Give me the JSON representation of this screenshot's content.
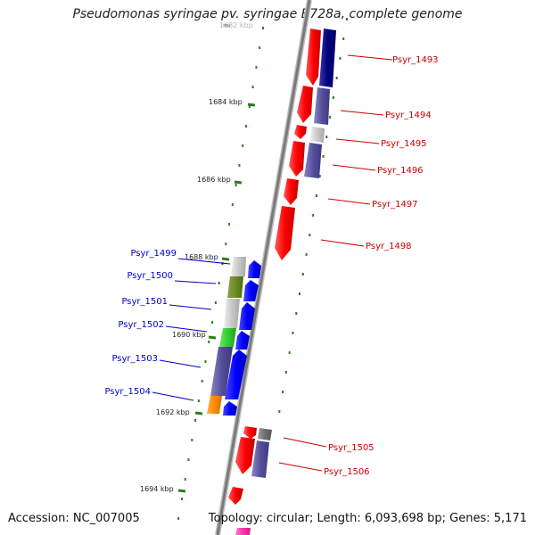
{
  "title": "Pseudomonas syringae pv. syringae B728a, complete genome",
  "footer": {
    "accession": "Accession: NC_007005",
    "summary": "Topology: circular; Length: 6,093,698 bp; Genes: 5,171"
  },
  "colors": {
    "backbone": "#8a8a8a",
    "tick": "#2e7d1e",
    "forward_label": "#cc0000",
    "reverse_label": "#0000cc"
  },
  "scale": {
    "ticks": [
      {
        "label": "1682 kbp"
      },
      {
        "label": "1684 kbp"
      },
      {
        "label": "1686 kbp"
      },
      {
        "label": "1688 kbp"
      },
      {
        "label": "1690 kbp"
      },
      {
        "label": "1692 kbp"
      },
      {
        "label": "1694 kbp"
      }
    ]
  },
  "genes": [
    {
      "id": "Psyr_1493",
      "strand": "forward"
    },
    {
      "id": "Psyr_1494",
      "strand": "forward"
    },
    {
      "id": "Psyr_1495",
      "strand": "forward"
    },
    {
      "id": "Psyr_1496",
      "strand": "forward"
    },
    {
      "id": "Psyr_1497",
      "strand": "forward"
    },
    {
      "id": "Psyr_1498",
      "strand": "forward"
    },
    {
      "id": "Psyr_1499",
      "strand": "reverse"
    },
    {
      "id": "Psyr_1500",
      "strand": "reverse"
    },
    {
      "id": "Psyr_1501",
      "strand": "reverse"
    },
    {
      "id": "Psyr_1502",
      "strand": "reverse"
    },
    {
      "id": "Psyr_1503",
      "strand": "reverse"
    },
    {
      "id": "Psyr_1504",
      "strand": "reverse"
    },
    {
      "id": "Psyr_1505",
      "strand": "forward"
    },
    {
      "id": "Psyr_1506",
      "strand": "forward"
    }
  ]
}
